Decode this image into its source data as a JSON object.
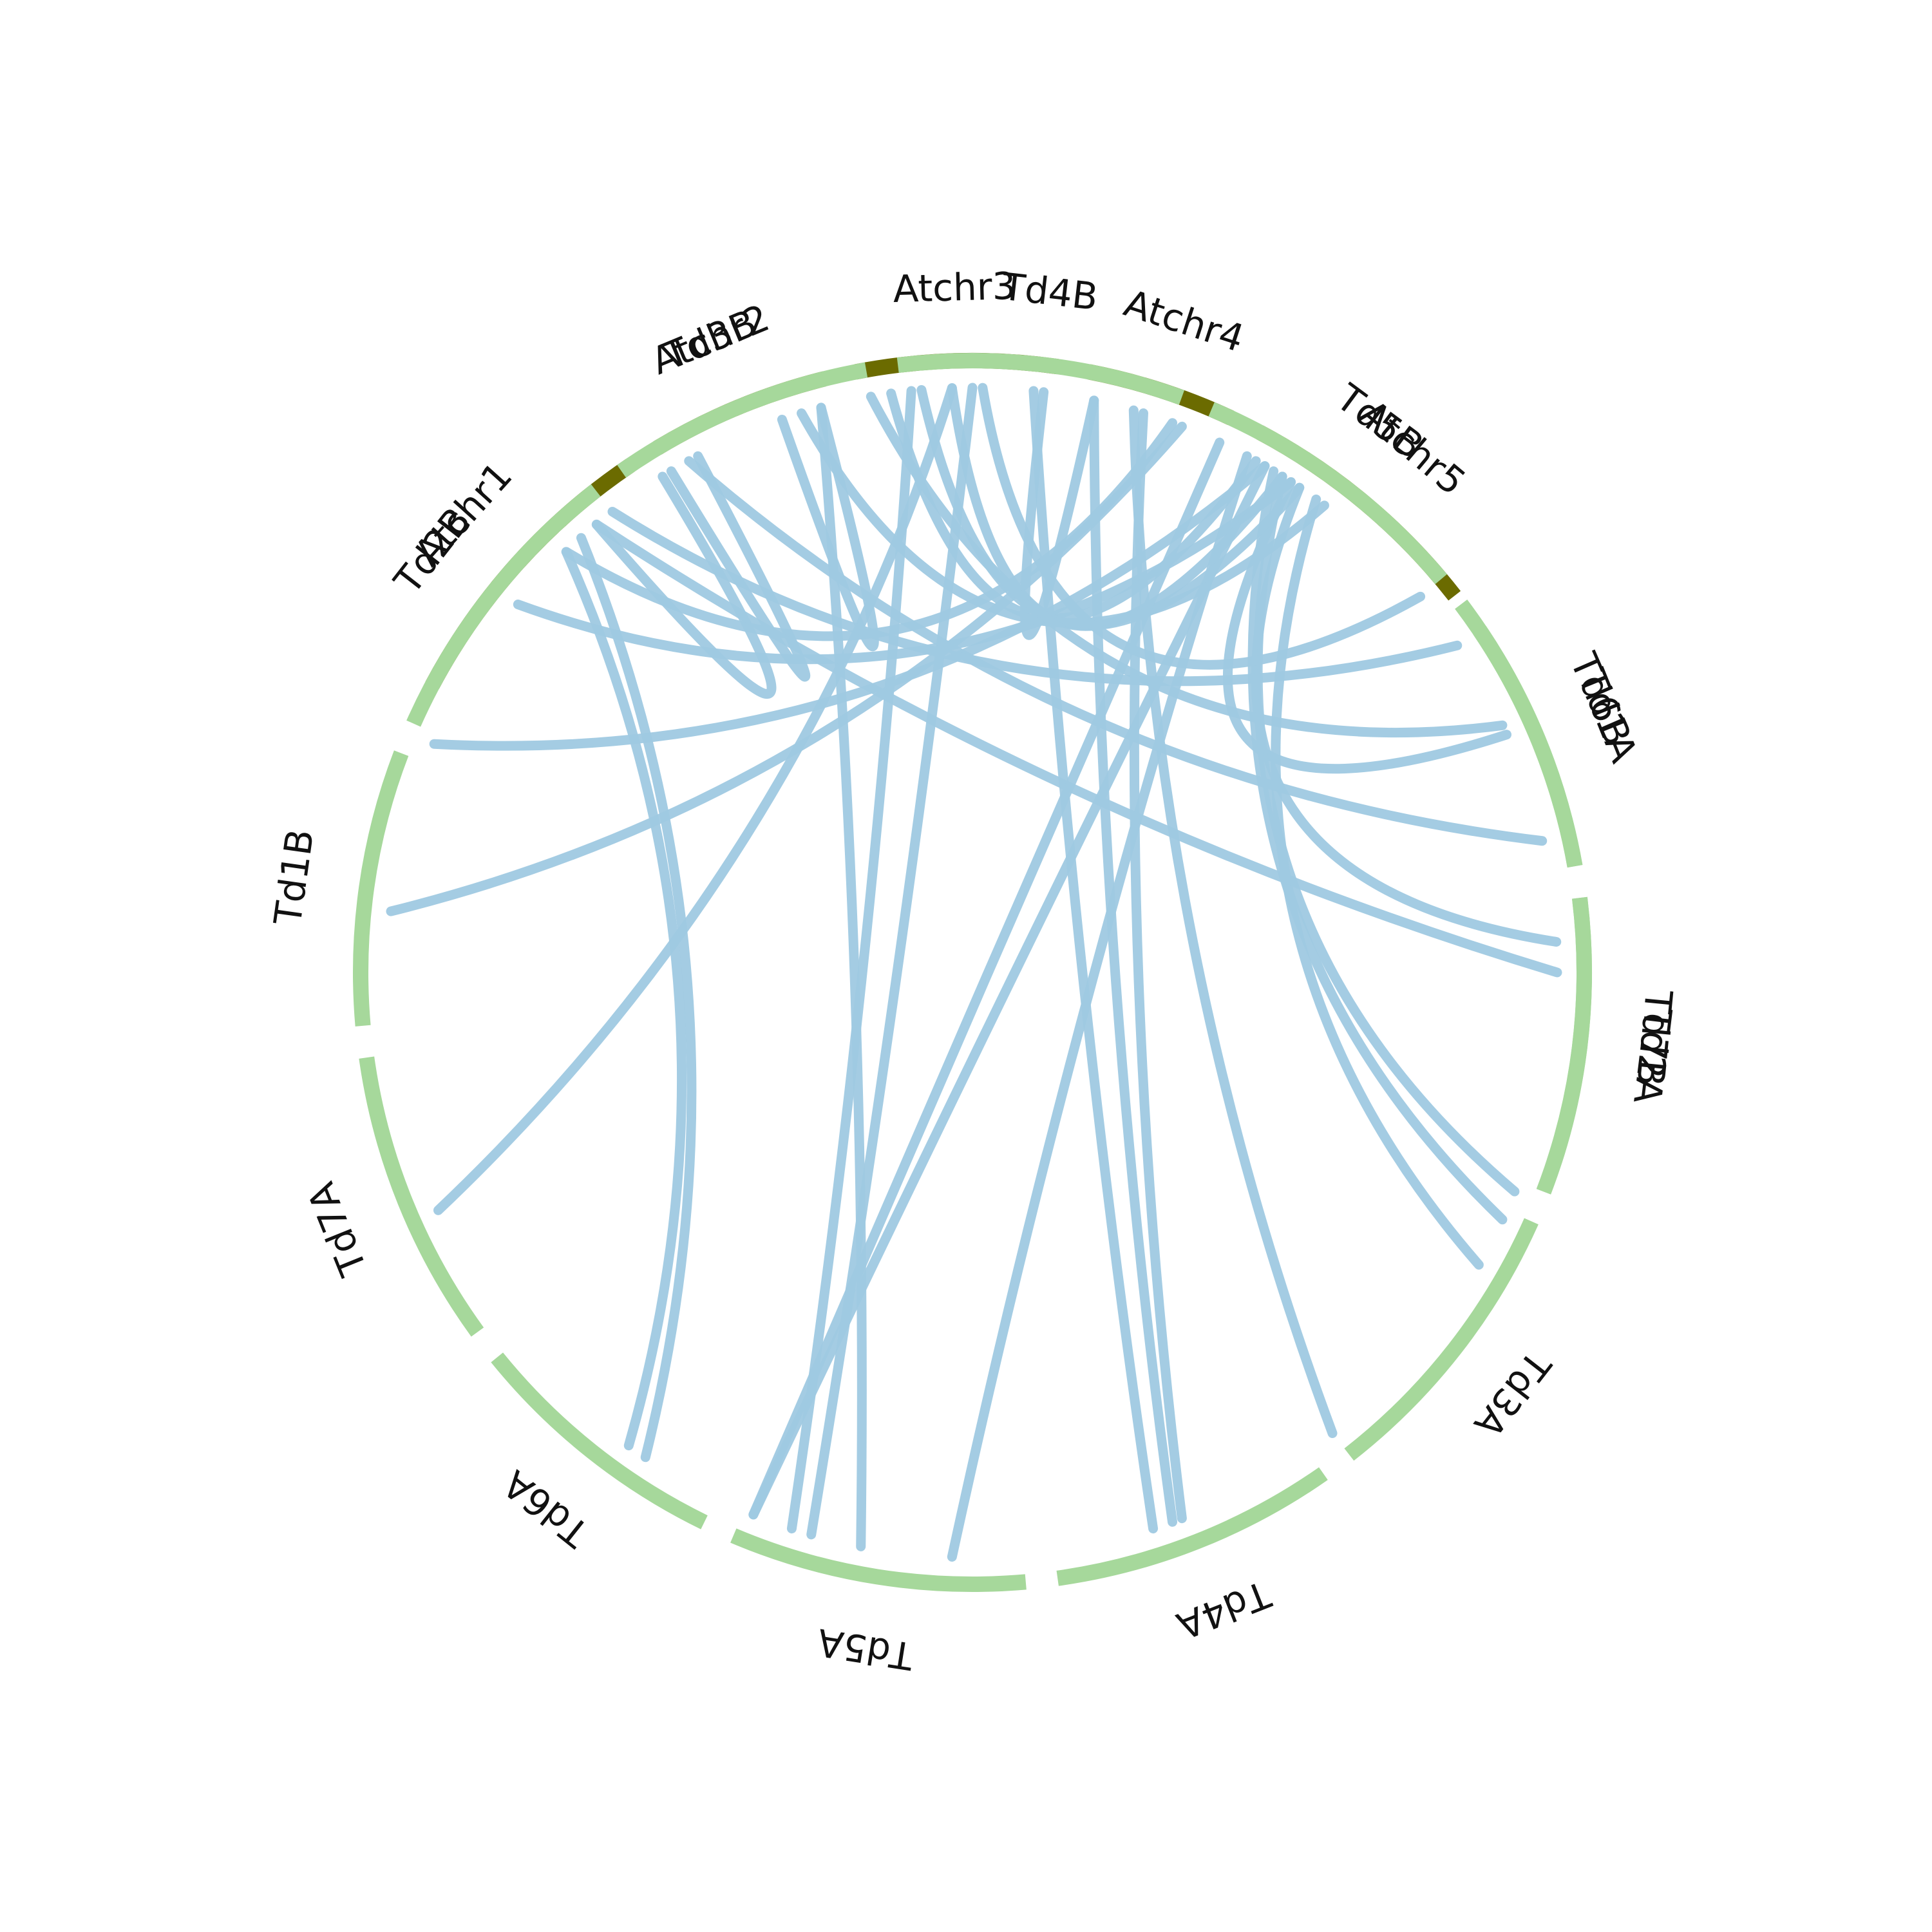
{
  "colors": {
    "arabidopsis": "#6b6b00",
    "wheat": "#a6d89b",
    "link": "#9fc9e1",
    "label": "#111111",
    "background": "#ffffff"
  },
  "chromosomes": [
    {
      "id": "Atchr1",
      "label": "Atchr1",
      "genome": "arabidopsis",
      "start_deg": 208,
      "end_deg": 236
    },
    {
      "id": "Atchr2",
      "label": "Atchr2",
      "genome": "arabidopsis",
      "start_deg": 239,
      "end_deg": 256
    },
    {
      "id": "Atchr3",
      "label": "Atchr3",
      "genome": "arabidopsis",
      "start_deg": 259,
      "end_deg": 278
    },
    {
      "id": "Atchr4",
      "label": "Atchr4",
      "genome": "arabidopsis",
      "start_deg": 281,
      "end_deg": 295
    },
    {
      "id": "Atchr5",
      "label": "Atchr5",
      "genome": "arabidopsis",
      "start_deg": 298,
      "end_deg": 322
    },
    {
      "id": "Td1A",
      "label": "Td1A",
      "genome": "wheat",
      "start_deg": 326,
      "end_deg": 350
    },
    {
      "id": "Td2A",
      "label": "Td2A",
      "genome": "wheat",
      "start_deg": 353,
      "end_deg": 381
    },
    {
      "id": "Td3A",
      "label": "Td3A",
      "genome": "wheat",
      "start_deg": 384,
      "end_deg": 412
    },
    {
      "id": "Td4A",
      "label": "Td4A",
      "genome": "wheat",
      "start_deg": 415,
      "end_deg": 442
    },
    {
      "id": "Td5A",
      "label": "Td5A",
      "genome": "wheat",
      "start_deg": 445,
      "end_deg": 473
    },
    {
      "id": "Td6A",
      "label": "Td6A",
      "genome": "wheat",
      "start_deg": 476,
      "end_deg": 501
    },
    {
      "id": "Td7A",
      "label": "Td7A",
      "genome": "wheat",
      "start_deg": 504,
      "end_deg": 532
    },
    {
      "id": "Td1B",
      "label": "Td1B",
      "genome": "wheat",
      "start_deg": 535,
      "end_deg": 561
    },
    {
      "id": "Td2B",
      "label": "Td2B",
      "genome": "wheat",
      "start_deg": 564,
      "end_deg": 592
    },
    {
      "id": "Td3B",
      "label": "Td3B",
      "genome": "wheat",
      "start_deg": 595,
      "end_deg": 620
    },
    {
      "id": "Td4B",
      "label": "Td4B",
      "genome": "wheat",
      "start_deg": 623,
      "end_deg": 650
    },
    {
      "id": "Td5B",
      "label": "Td5B",
      "genome": "wheat",
      "start_deg": 653,
      "end_deg": 680
    },
    {
      "id": "Td6B",
      "label": "Td6B",
      "genome": "wheat",
      "start_deg": 683,
      "end_deg": 710
    },
    {
      "id": "Td7B",
      "label": "Td7B",
      "genome": "wheat",
      "start_deg": 713,
      "end_deg": 738
    }
  ],
  "links": [
    {
      "from_deg": 303,
      "to_deg": 336
    },
    {
      "from_deg": 304,
      "to_deg": 357
    },
    {
      "from_deg": 302,
      "to_deg": 382
    },
    {
      "from_deg": 301,
      "to_deg": 385
    },
    {
      "from_deg": 306,
      "to_deg": 390
    },
    {
      "from_deg": 286,
      "to_deg": 412
    },
    {
      "from_deg": 282,
      "to_deg": 430
    },
    {
      "from_deg": 287,
      "to_deg": 429
    },
    {
      "from_deg": 298,
      "to_deg": 452
    },
    {
      "from_deg": 300,
      "to_deg": 472
    },
    {
      "from_deg": 270,
      "to_deg": 466
    },
    {
      "from_deg": 264,
      "to_deg": 468
    },
    {
      "from_deg": 255,
      "to_deg": 461
    },
    {
      "from_deg": 228,
      "to_deg": 484
    },
    {
      "from_deg": 226,
      "to_deg": 486
    },
    {
      "from_deg": 268,
      "to_deg": 516
    },
    {
      "from_deg": 291,
      "to_deg": 546
    },
    {
      "from_deg": 300,
      "to_deg": 563
    },
    {
      "from_deg": 303,
      "to_deg": 579
    },
    {
      "from_deg": 290,
      "to_deg": 586
    },
    {
      "from_deg": 238,
      "to_deg": 590
    },
    {
      "from_deg": 242,
      "to_deg": 599
    },
    {
      "from_deg": 251,
      "to_deg": 615
    },
    {
      "from_deg": 282,
      "to_deg": 637
    },
    {
      "from_deg": 262,
      "to_deg": 659
    },
    {
      "from_deg": 268,
      "to_deg": 662
    },
    {
      "from_deg": 265,
      "to_deg": 664
    },
    {
      "from_deg": 253,
      "to_deg": 667
    },
    {
      "from_deg": 271,
      "to_deg": 680
    },
    {
      "from_deg": 260,
      "to_deg": 695
    },
    {
      "from_deg": 241,
      "to_deg": 707
    },
    {
      "from_deg": 232,
      "to_deg": 686
    },
    {
      "from_deg": 230,
      "to_deg": 720
    },
    {
      "from_deg": 276,
      "to_deg": 432
    },
    {
      "from_deg": 295,
      "to_deg": 472
    }
  ]
}
